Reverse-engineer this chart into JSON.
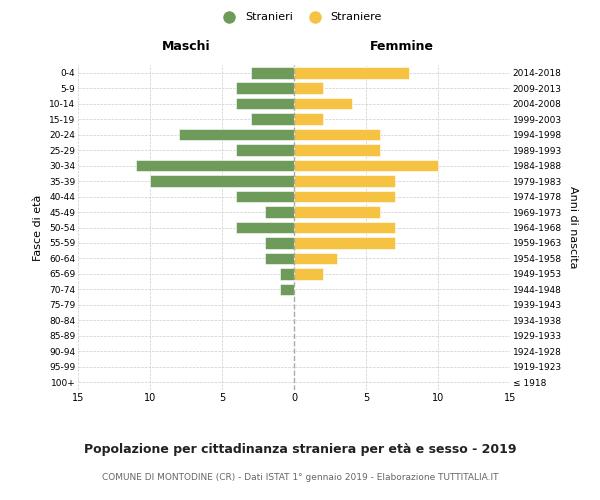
{
  "age_groups": [
    "100+",
    "95-99",
    "90-94",
    "85-89",
    "80-84",
    "75-79",
    "70-74",
    "65-69",
    "60-64",
    "55-59",
    "50-54",
    "45-49",
    "40-44",
    "35-39",
    "30-34",
    "25-29",
    "20-24",
    "15-19",
    "10-14",
    "5-9",
    "0-4"
  ],
  "birth_years": [
    "≤ 1918",
    "1919-1923",
    "1924-1928",
    "1929-1933",
    "1934-1938",
    "1939-1943",
    "1944-1948",
    "1949-1953",
    "1954-1958",
    "1959-1963",
    "1964-1968",
    "1969-1973",
    "1974-1978",
    "1979-1983",
    "1984-1988",
    "1989-1993",
    "1994-1998",
    "1999-2003",
    "2004-2008",
    "2009-2013",
    "2014-2018"
  ],
  "maschi": [
    0,
    0,
    0,
    0,
    0,
    0,
    1,
    1,
    2,
    2,
    4,
    2,
    4,
    10,
    11,
    4,
    8,
    3,
    4,
    4,
    3
  ],
  "femmine": [
    0,
    0,
    0,
    0,
    0,
    0,
    0,
    2,
    3,
    7,
    7,
    6,
    7,
    7,
    10,
    6,
    6,
    2,
    4,
    2,
    8
  ],
  "color_maschi": "#6e9b5a",
  "color_femmine": "#f5c242",
  "title": "Popolazione per cittadinanza straniera per età e sesso - 2019",
  "subtitle": "COMUNE DI MONTODINE (CR) - Dati ISTAT 1° gennaio 2019 - Elaborazione TUTTITALIA.IT",
  "xlabel_left": "Maschi",
  "xlabel_right": "Femmine",
  "ylabel_left": "Fasce di età",
  "ylabel_right": "Anni di nascita",
  "legend_maschi": "Stranieri",
  "legend_femmine": "Straniere",
  "xlim": 15,
  "background_color": "#ffffff",
  "grid_color": "#cccccc"
}
